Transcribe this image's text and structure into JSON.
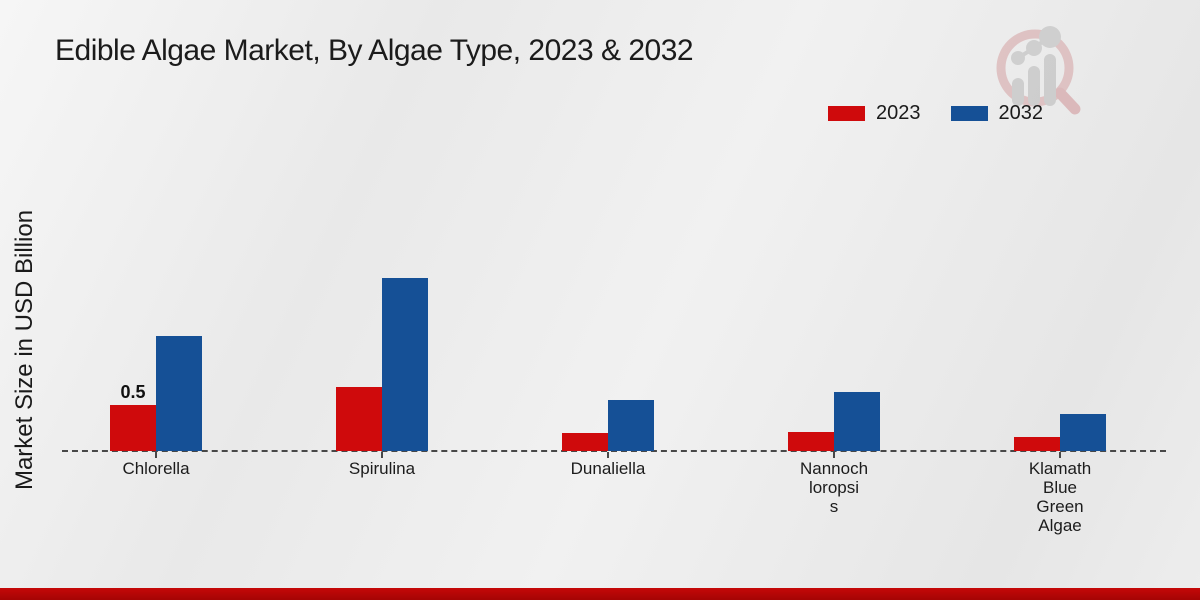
{
  "title": "Edible Algae Market, By Algae Type, 2023 & 2032",
  "ylabel": "Market Size in USD Billion",
  "brand": {
    "logo_icon": "magnifier-bar-chart-logo"
  },
  "colors": {
    "series_2023": "#cf0a0c",
    "series_2032": "#155096",
    "footer_strip": "#b40606",
    "baseline": "#484848",
    "background": "#ececec"
  },
  "legend": {
    "items": [
      "2023",
      "2032"
    ],
    "position": "top-right"
  },
  "chart_data": {
    "type": "bar",
    "title": "Edible Algae Market, By Algae Type, 2023 & 2032",
    "xlabel": "",
    "ylabel": "Market Size in USD Billion",
    "units": "USD Billion",
    "grid": false,
    "baseline_style": "dashed",
    "legend_position": "top-right",
    "ylim": [
      0,
      2.0
    ],
    "categories": [
      "Chlorella",
      "Spirulina",
      "Dunaliella",
      "Nannochloropsis",
      "Klamath Blue Green Algae"
    ],
    "category_label_lines": [
      [
        "Chlorella"
      ],
      [
        "Spirulina"
      ],
      [
        "Dunaliella"
      ],
      [
        "Nannoch",
        "loropsi",
        "s"
      ],
      [
        "Klamath",
        "Blue",
        "Green",
        "Algae"
      ]
    ],
    "series": [
      {
        "name": "2023",
        "color": "#cf0a0c",
        "values": [
          0.5,
          0.7,
          0.2,
          0.21,
          0.15
        ]
      },
      {
        "name": "2032",
        "color": "#155096",
        "values": [
          1.25,
          1.88,
          0.55,
          0.64,
          0.4
        ]
      }
    ],
    "value_labels": [
      {
        "series_index": 0,
        "category_index": 0,
        "text": "0.5"
      }
    ]
  }
}
